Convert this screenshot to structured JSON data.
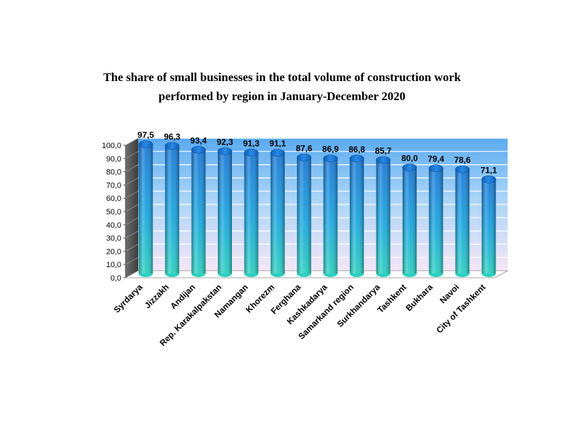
{
  "chart_data": {
    "type": "bar",
    "title_line1": "The share of small businesses in the total volume of construction work",
    "title_line2": "performed by region in January-December 2020",
    "xlabel": "",
    "ylabel": "",
    "ylim": [
      0,
      100
    ],
    "ytick_step": 10,
    "ytick_labels": [
      "0,0",
      "10,0",
      "20,0",
      "30,0",
      "40,0",
      "50,0",
      "60,0",
      "70,0",
      "80,0",
      "90,0",
      "100,0"
    ],
    "grid": true,
    "categories": [
      "Syrdarya",
      "Jizzakh",
      "Andijan",
      "Rep. Karakalpakstan",
      "Namangan",
      "Khorezm",
      "Ferghana",
      "Kashkadarya",
      "Samarkand region",
      "Surkhandarya",
      "Tashkent",
      "Bukhara",
      "Navoi",
      "City of Tashkent"
    ],
    "values": [
      97.5,
      96.3,
      93.4,
      92.3,
      91.3,
      91.1,
      87.6,
      86.9,
      86.8,
      85.7,
      80.0,
      79.4,
      78.6,
      71.1
    ],
    "value_labels": [
      "97,5",
      "96,3",
      "93,4",
      "92,3",
      "91,3",
      "91,1",
      "87,6",
      "86,9",
      "86,8",
      "85,7",
      "80,0",
      "79,4",
      "78,6",
      "71,1"
    ],
    "colors": {
      "bar_top": "#1a78d8",
      "bar_bottom": "#2bd0c0",
      "wall_top": "#5aaaf0",
      "wall_bottom": "#f4e6f6",
      "side_wall": "#4d4d4d"
    }
  }
}
